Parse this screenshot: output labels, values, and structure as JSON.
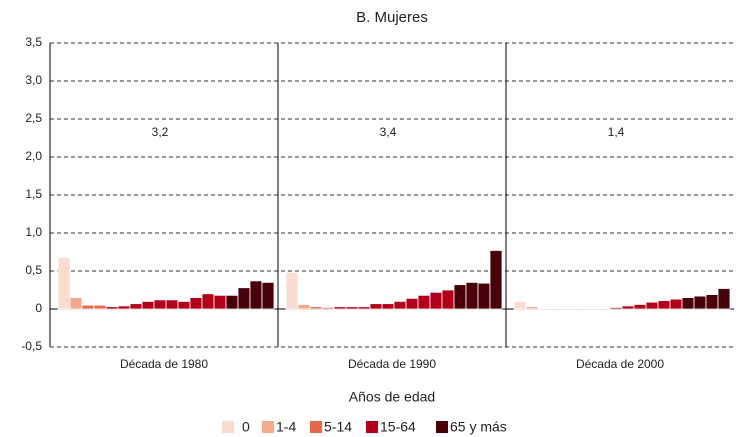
{
  "chart_data": {
    "type": "bar",
    "title": "B. Mujeres",
    "categories": [
      "Década de 1980",
      "Década de 1990",
      "Década de 2000"
    ],
    "annotations": [
      "3,2",
      "3,4",
      "1,4"
    ],
    "xlabel": "Años de edad",
    "series": [
      {
        "name": "0",
        "color": "#f9dbcf",
        "values": [
          [
            0.68
          ],
          [
            0.48
          ],
          [
            0.1
          ]
        ]
      },
      {
        "name": "1-4",
        "color": "#f2a98c",
        "values": [
          [
            0.15
          ],
          [
            0.06
          ],
          [
            0.03
          ]
        ]
      },
      {
        "name": "5-14",
        "color": "#e8674a",
        "values": [
          [
            0.05,
            0.05
          ],
          [
            0.03,
            0.02
          ],
          [
            0.01,
            0.01
          ]
        ]
      },
      {
        "name": "15-64",
        "color": "#b3001b",
        "values": [
          [
            0.03,
            0.04,
            0.07,
            0.1,
            0.12,
            0.12,
            0.1,
            0.15,
            0.2,
            0.18
          ],
          [
            0.03,
            0.03,
            0.03,
            0.07,
            0.07,
            0.1,
            0.14,
            0.18,
            0.22,
            0.25
          ],
          [
            0.01,
            0.01,
            0.01,
            0.01,
            0.02,
            0.04,
            0.06,
            0.09,
            0.11,
            0.13
          ]
        ]
      },
      {
        "name": "65 y más",
        "color": "#4a0008",
        "values": [
          [
            0.18,
            0.28,
            0.37,
            0.35
          ],
          [
            0.32,
            0.35,
            0.34,
            0.77
          ],
          [
            0.15,
            0.17,
            0.19,
            0.27
          ]
        ]
      }
    ],
    "ylim": [
      -0.5,
      3.5
    ],
    "yticks": [
      {
        "value": -0.5,
        "label": "-0,5"
      },
      0,
      {
        "value": 0.5,
        "label": "0,5"
      },
      {
        "value": 1,
        "label": "1,0"
      },
      {
        "value": 1.5,
        "label": "1,5"
      },
      {
        "value": 2,
        "label": "2,0"
      },
      {
        "value": 2.5,
        "label": "2,5"
      },
      {
        "value": 3,
        "label": "3,0"
      },
      {
        "value": 3.5,
        "label": "3,5"
      }
    ],
    "grid": true
  }
}
